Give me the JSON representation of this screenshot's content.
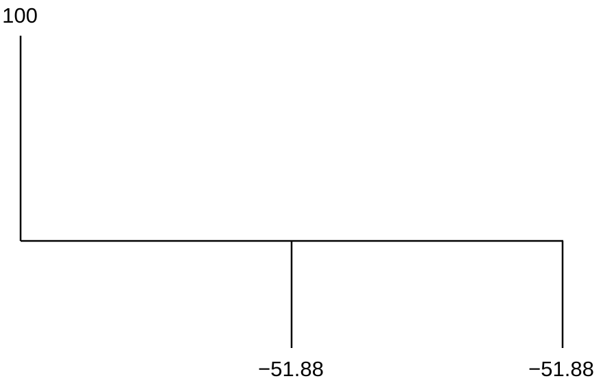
{
  "diagram": {
    "type": "cash-flow-diagram",
    "flows": [
      {
        "period": 0,
        "value": "100"
      },
      {
        "period": 1,
        "value": "−51.88"
      },
      {
        "period": 2,
        "value": "−51.88"
      }
    ],
    "line_color": "#000000",
    "text_color": "#000000"
  }
}
